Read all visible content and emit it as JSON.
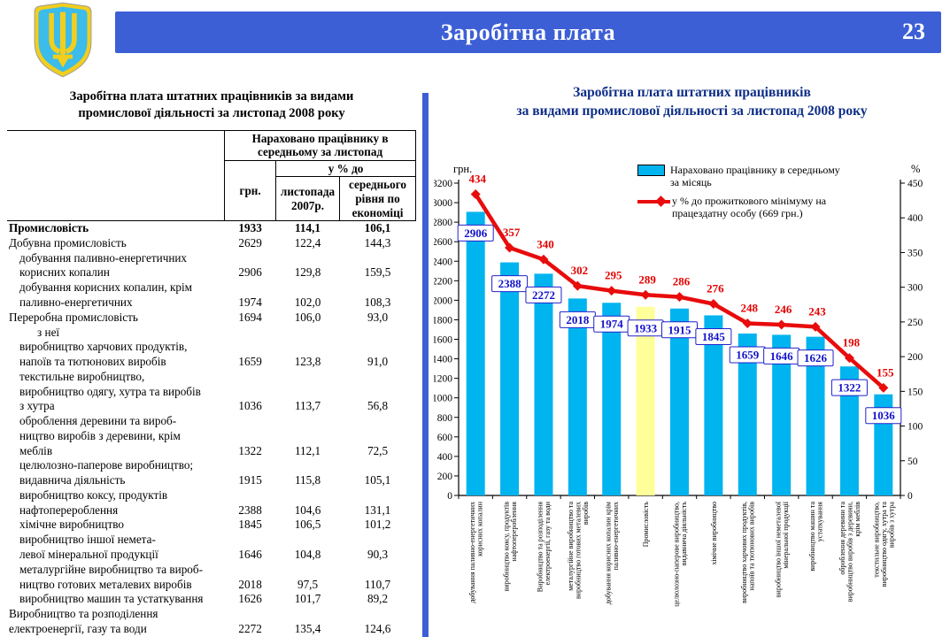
{
  "header": {
    "title": "Заробітна плата",
    "page_number": "23",
    "bar_color": "#3d5fd6",
    "emblem": "ukraine-coat-of-arms"
  },
  "table": {
    "title": "Заробітна плата штатних працівників за видами\nпромислової діяльності  за листопад 2008 року",
    "header": {
      "group": "Нараховано працівнику в\nсередньому за листопад",
      "col_grn": "грн.",
      "pct_group": "у % до",
      "col_nov2007": "листопада\n2007р.",
      "col_avg": "середнього\nрівня по\nекономіці"
    },
    "rows": [
      {
        "label": "Промисловість",
        "grn": "1933",
        "pct_2007": "114,1",
        "pct_avg": "106,1",
        "bold": true,
        "indent": 0
      },
      {
        "label": "Добувна промисловість",
        "grn": "2629",
        "pct_2007": "122,4",
        "pct_avg": "144,3",
        "bold": false,
        "indent": 0
      },
      {
        "label": "добування паливно-енергетичних\nкорисних копалин",
        "grn": "2906",
        "pct_2007": "129,8",
        "pct_avg": "159,5",
        "bold": false,
        "indent": 1
      },
      {
        "label": "добування корисних копалин, крім\nпаливно-енергетичних",
        "grn": "1974",
        "pct_2007": "102,0",
        "pct_avg": "108,3",
        "bold": false,
        "indent": 1
      },
      {
        "label": "Переробна промисловість",
        "grn": "1694",
        "pct_2007": "106,0",
        "pct_avg": "93,0",
        "bold": false,
        "indent": 0
      },
      {
        "label": "з неї",
        "grn": "",
        "pct_2007": "",
        "pct_avg": "",
        "bold": false,
        "indent": 2
      },
      {
        "label": "виробництво харчових продуктів,\nнапоїв та тютюнових виробів",
        "grn": "1659",
        "pct_2007": "123,8",
        "pct_avg": "91,0",
        "bold": false,
        "indent": 1
      },
      {
        "label": "текстильне виробництво,\nвиробництво одягу, хутра та виробів\nз хутра",
        "grn": "1036",
        "pct_2007": "113,7",
        "pct_avg": "56,8",
        "bold": false,
        "indent": 1
      },
      {
        "label": "оброблення деревини та вироб-\nництво виробів з деревини, крім\nмеблів",
        "grn": "1322",
        "pct_2007": "112,1",
        "pct_avg": "72,5",
        "bold": false,
        "indent": 1
      },
      {
        "label": "целюлозно-паперове виробництво;\nвидавнича діяльність",
        "grn": "1915",
        "pct_2007": "115,8",
        "pct_avg": "105,1",
        "bold": false,
        "indent": 1
      },
      {
        "label": "виробництво коксу, продуктів\nнафтоперероблення",
        "grn": "2388",
        "pct_2007": "104,6",
        "pct_avg": "131,1",
        "bold": false,
        "indent": 1
      },
      {
        "label": "хімічне виробництво",
        "grn": "1845",
        "pct_2007": "106,5",
        "pct_avg": "101,2",
        "bold": false,
        "indent": 1
      },
      {
        "label": "виробництво іншої немета-\nлевої мінеральної продукції",
        "grn": "1646",
        "pct_2007": "104,8",
        "pct_avg": "90,3",
        "bold": false,
        "indent": 1
      },
      {
        "label": "металургійне виробництво та вироб-\nництво готових металевих виробів",
        "grn": "2018",
        "pct_2007": "97,5",
        "pct_avg": "110,7",
        "bold": false,
        "indent": 1
      },
      {
        "label": "виробництво машин та устаткування",
        "grn": "1626",
        "pct_2007": "101,7",
        "pct_avg": "89,2",
        "bold": false,
        "indent": 1
      },
      {
        "label": "Виробництво та розподілення\nелектроенергії, газу та води",
        "grn": "2272",
        "pct_2007": "135,4",
        "pct_avg": "124,6",
        "bold": false,
        "indent": 0
      }
    ]
  },
  "chart_data": {
    "type": "bar",
    "title": "Заробітна плата штатних працівників\nза видами промислової діяльності за листопад 2008 року",
    "legend": [
      {
        "type": "bar",
        "color": "#00b4ef",
        "label": "Нараховано працівнику в середньому\nза місяць"
      },
      {
        "type": "line",
        "color": "#e80c0c",
        "label": "у % до прожиткового мінімуму на\nпрацездатну особу (669 грн.)"
      }
    ],
    "axis_left": {
      "label": "грн.",
      "min": 0,
      "max": 3200,
      "step": 200
    },
    "axis_right": {
      "label": "%",
      "min": 0,
      "max": 450,
      "step": 50
    },
    "grid": false,
    "legend_position": "top-right",
    "categories": [
      "добування паливно-енергетичних\nкорисних копалин",
      "виробництво коксу, продуктів\nнафтоперероблення",
      "Виробництво та розподілення\nелектроенергії, газу та води",
      "металургійне виробництво та\nвиробництво готових металевих\nвиробів",
      "добування корисних копалин крім\nпаливно-енергетичних",
      "Промисловість",
      "целюлозно-паперове виробництво,\nвидавнича діяльність",
      "хімічне виробництво",
      "виробництво харчових продуктів,\nнапоїв та тютюнових виробів",
      "виробництво іншої неметалевої\nмінеральної продукції",
      "виробництво машин та\nустаткування",
      "оброблення деревини та\nвиробництво виробів з деревини,\nкрім меблів",
      "текстильне виробництво,\nвиробництво одягу, хутра та\nвиробів з хутра"
    ],
    "series": [
      {
        "name": "Нараховано працівнику в середньому за місяць",
        "type": "bar",
        "axis": "left",
        "values": [
          2906,
          2388,
          2272,
          2018,
          1974,
          1933,
          1915,
          1845,
          1659,
          1646,
          1626,
          1322,
          1036
        ]
      },
      {
        "name": "у % до прожиткового мінімуму на працездатну особу (669 грн.)",
        "type": "line",
        "axis": "right",
        "values": [
          434,
          357,
          340,
          302,
          295,
          289,
          286,
          276,
          248,
          246,
          243,
          198,
          155
        ]
      }
    ],
    "highlight_index": 5,
    "bar_color": "#00b4ef",
    "highlight_bar_color": "#ffff99",
    "line_color": "#e80c0c",
    "bar_label_color": "#1111cc",
    "line_label_color": "#e60000"
  }
}
